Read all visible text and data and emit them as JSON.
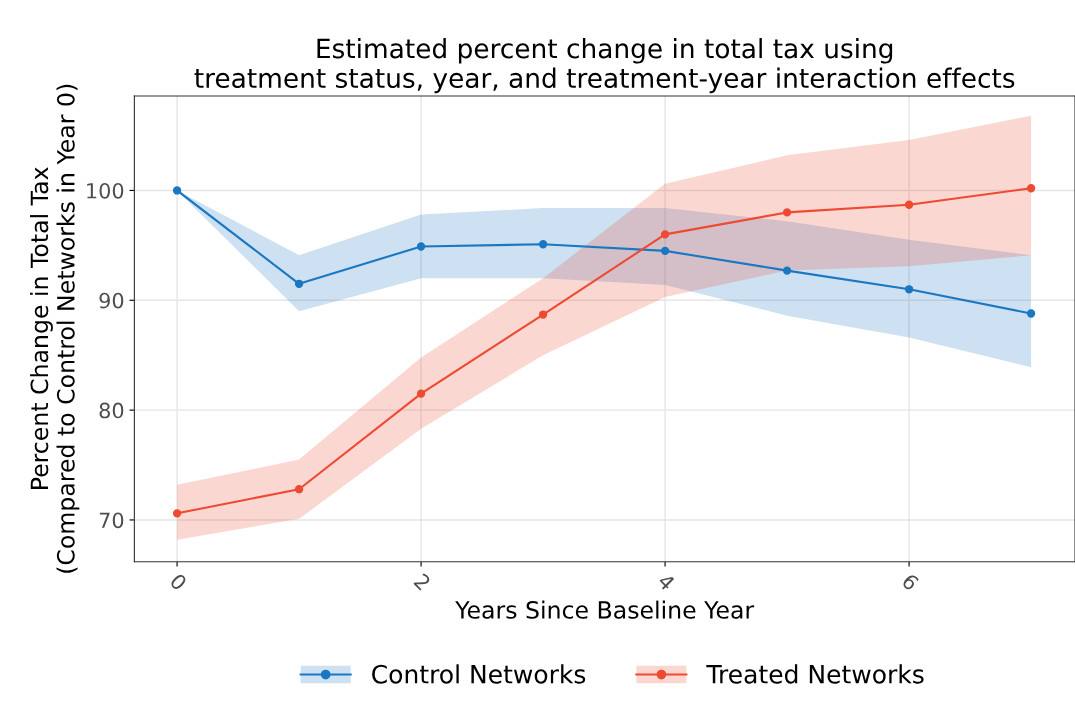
{
  "chart_data": {
    "type": "line",
    "title": "Estimated percent change in total tax using\ntreatment status, year, and treatment-year interaction effects",
    "xlabel": "Years Since Baseline Year",
    "ylabel": "Percent Change in Total Tax\n(Compared to Control Networks in Year 0)",
    "x": [
      0,
      1,
      2,
      3,
      4,
      5,
      6,
      7
    ],
    "series": [
      {
        "name": "Control Networks",
        "color": "#1a78c2",
        "values": [
          100,
          91.5,
          94.9,
          95.1,
          94.5,
          92.7,
          91.0,
          88.8
        ],
        "lower": [
          100,
          89.0,
          92.0,
          92.0,
          91.4,
          88.6,
          86.6,
          83.9
        ],
        "upper": [
          100,
          94.1,
          97.8,
          98.4,
          98.4,
          97.2,
          95.5,
          94.1
        ]
      },
      {
        "name": "Treated Networks",
        "color": "#ee4a32",
        "values": [
          70.6,
          72.8,
          81.5,
          88.7,
          96.0,
          98.0,
          98.7,
          100.2
        ],
        "lower": [
          68.2,
          70.1,
          78.3,
          85.0,
          90.3,
          92.7,
          93.1,
          94.1
        ],
        "upper": [
          73.2,
          75.5,
          84.8,
          92.0,
          100.6,
          103.2,
          104.6,
          106.8
        ]
      }
    ],
    "xlim": [
      -0.35,
      7.36
    ],
    "ylim": [
      66.2,
      108.6
    ],
    "xticks": [
      0,
      2,
      4,
      6
    ],
    "yticks": [
      70,
      80,
      90,
      100
    ],
    "grid": true,
    "legend": "bottom",
    "marker": "circle",
    "line_style": "solid"
  }
}
